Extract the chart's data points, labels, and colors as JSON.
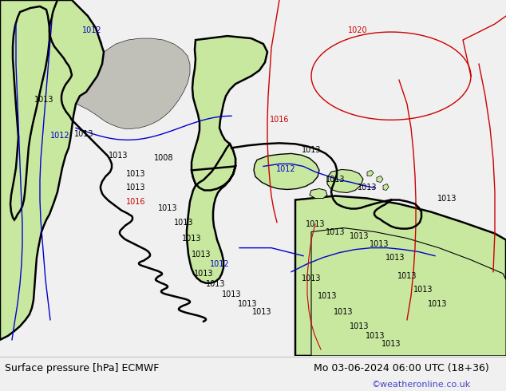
{
  "fig_width": 6.34,
  "fig_height": 4.9,
  "dpi": 100,
  "bg_color": "#f0f0f0",
  "ocean_color": "#e8e8e8",
  "land_green": "#c8e8a0",
  "land_gray": "#c0c0b8",
  "left_label": "Surface pressure [hPa] ECMWF",
  "center_label": "Mo 03-06-2024 06:00 UTC (18+36)",
  "right_label": "©weatheronline.co.uk",
  "label_fontsize": 9,
  "right_label_color": "#4444cc",
  "label_color": "#000000",
  "blue": "#0000cc",
  "red": "#cc0000",
  "black": "#000000",
  "coast_lw": 1.8,
  "isobar_lw": 1.0
}
